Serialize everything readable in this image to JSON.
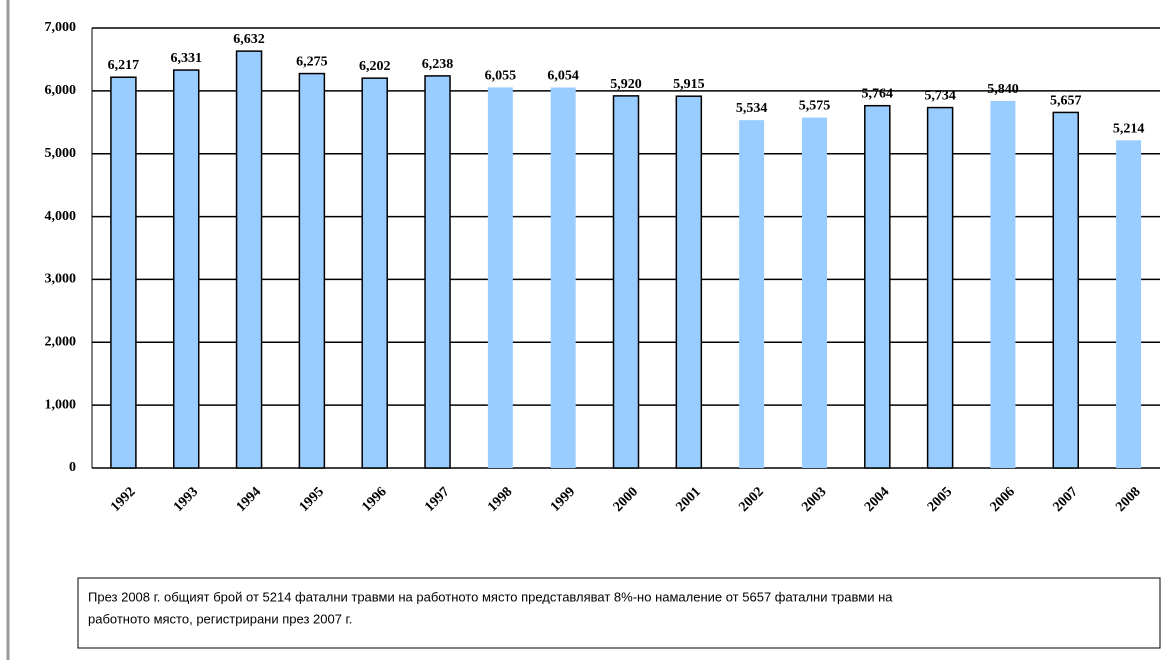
{
  "chart_data": {
    "type": "bar",
    "categories": [
      "1992",
      "1993",
      "1994",
      "1995",
      "1996",
      "1997",
      "1998",
      "1999",
      "2000",
      "2001",
      "2002",
      "2003",
      "2004",
      "2005",
      "2006",
      "2007",
      "2008"
    ],
    "values": [
      6217,
      6331,
      6632,
      6275,
      6202,
      6238,
      6055,
      6054,
      5920,
      5915,
      5534,
      5575,
      5764,
      5734,
      5840,
      5657,
      5214
    ],
    "value_labels": [
      "6,217",
      "6,331",
      "6,632",
      "6,275",
      "6,202",
      "6,238",
      "6,055",
      "6,054",
      "5,920",
      "5,915",
      "5,534",
      "5,575",
      "5,764",
      "5,734",
      "5,840",
      "5,657",
      "5,214"
    ],
    "color": "#99ccff",
    "bar_borders": [
      true,
      true,
      true,
      true,
      true,
      true,
      false,
      false,
      true,
      true,
      false,
      false,
      true,
      true,
      false,
      true,
      false
    ],
    "ylim": [
      0,
      7000
    ],
    "yticks": [
      0,
      {
        "value": 1000,
        "label": "1,000"
      },
      {
        "value": 2000,
        "label": "2,000"
      },
      {
        "value": 3000,
        "label": "3,000"
      },
      {
        "value": 4000,
        "label": "4,000"
      },
      {
        "value": 5000,
        "label": "5,000"
      },
      {
        "value": 6000,
        "label": "6,000"
      },
      {
        "value": 7000,
        "label": "7,000"
      }
    ],
    "grid": true,
    "annotation": [
      "През 2008 г. общият брой от 5214 фатални травми на работното място представляват 8%-но намаление от 5657 фатални травми на",
      "работното място, регистрирани през 2007 г."
    ]
  }
}
